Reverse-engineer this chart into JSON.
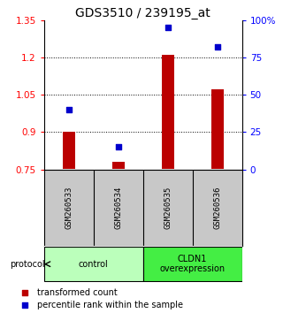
{
  "title": "GDS3510 / 239195_at",
  "samples": [
    "GSM260533",
    "GSM260534",
    "GSM260535",
    "GSM260536"
  ],
  "bar_values": [
    0.903,
    0.782,
    1.21,
    1.073
  ],
  "bar_base": 0.752,
  "percentile_values": [
    40,
    15,
    95,
    82
  ],
  "ylim_left": [
    0.75,
    1.35
  ],
  "ylim_right": [
    0,
    100
  ],
  "yticks_left": [
    0.75,
    0.9,
    1.05,
    1.2,
    1.35
  ],
  "yticks_right": [
    0,
    25,
    50,
    75,
    100
  ],
  "ytick_labels_left": [
    "0.75",
    "0.9",
    "1.05",
    "1.2",
    "1.35"
  ],
  "ytick_labels_right": [
    "0",
    "25",
    "50",
    "75",
    "100%"
  ],
  "hlines": [
    0.9,
    1.05,
    1.2
  ],
  "bar_color": "#bb0000",
  "point_color": "#0000cc",
  "groups": [
    {
      "label": "control",
      "samples": [
        0,
        1
      ],
      "color": "#bbffbb"
    },
    {
      "label": "CLDN1\noverexpression",
      "samples": [
        2,
        3
      ],
      "color": "#44ee44"
    }
  ],
  "protocol_label": "protocol",
  "legend_bar_label": "transformed count",
  "legend_point_label": "percentile rank within the sample",
  "sample_box_color": "#c8c8c8",
  "plot_bg_color": "#ffffff",
  "title_fontsize": 10,
  "tick_fontsize": 7.5,
  "label_fontsize": 7.5
}
